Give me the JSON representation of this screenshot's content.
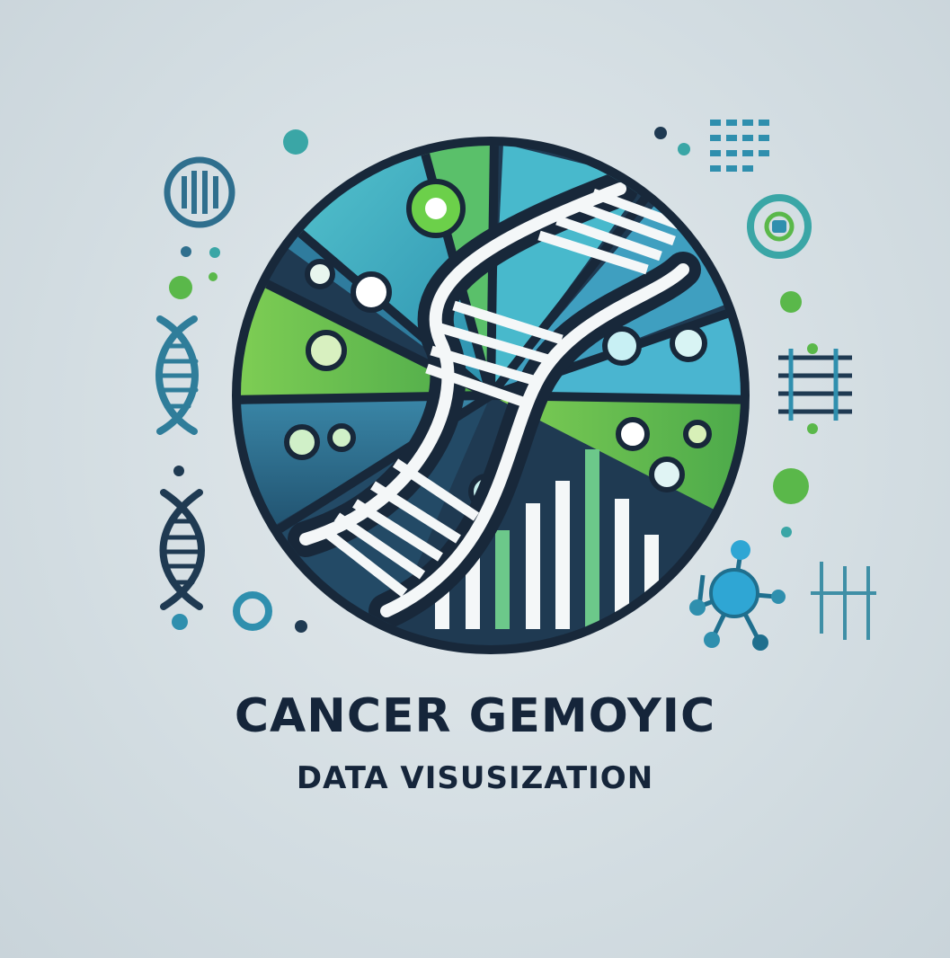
{
  "logo": {
    "title": "CANCER GEMOYIC",
    "subtitle": "DATA VISUSIZATION",
    "icons": [
      "dna-helix-icon",
      "bar-chart-icon",
      "molecule-icon",
      "data-grid-icon",
      "dot-icon",
      "ring-icon"
    ]
  },
  "colors": {
    "background": "#d7e0e4",
    "outline": "#18283a",
    "green": "#6cc14a",
    "teal": "#3fb2c4",
    "blue": "#2c6f8c",
    "navy": "#1f3a52",
    "text": "#15253a"
  }
}
